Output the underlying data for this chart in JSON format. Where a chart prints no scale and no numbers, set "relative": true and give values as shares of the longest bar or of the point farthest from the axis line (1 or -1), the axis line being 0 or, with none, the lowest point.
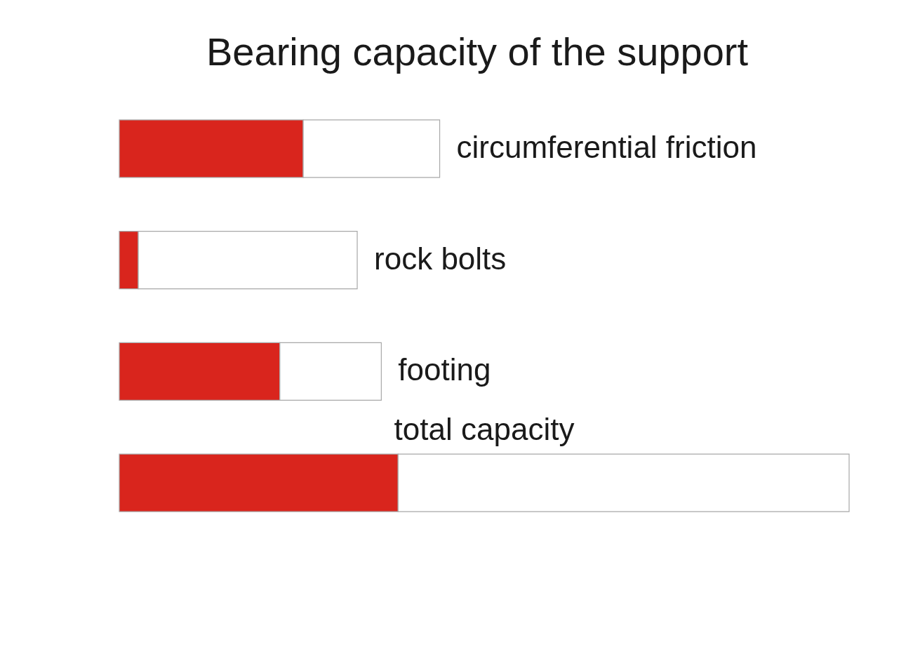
{
  "chart_data": {
    "type": "bar",
    "title": "Bearing capacity of the support",
    "orientation": "horizontal",
    "stacked": true,
    "relative": true,
    "categories": [
      "circumferential friction",
      "rock bolts",
      "footing",
      "total capacity"
    ],
    "series": [
      {
        "color": "#d9251d",
        "values": [
          0.252,
          0.026,
          0.22,
          0.382
        ]
      },
      {
        "color": "#ffffff",
        "values": [
          0.187,
          0.3,
          0.139,
          0.618
        ]
      }
    ]
  }
}
